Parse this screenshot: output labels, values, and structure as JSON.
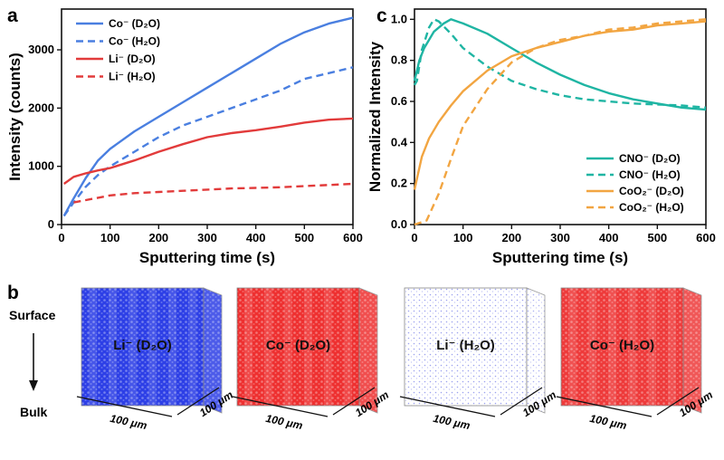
{
  "panel_letters": {
    "a": "a",
    "b": "b",
    "c": "c"
  },
  "chart_data": [
    {
      "panel": "a",
      "type": "line",
      "xlabel": "Sputtering time (s)",
      "ylabel": "Intensity (counts)",
      "xlim": [
        0,
        600
      ],
      "ylim": [
        0,
        3700
      ],
      "xticks": [
        0,
        100,
        200,
        300,
        400,
        500,
        600
      ],
      "yticks": [
        0,
        1000,
        2000,
        3000
      ],
      "legend_position": "top-left",
      "series": [
        {
          "name": "Co⁻ (D₂O)",
          "color": "#4a7fe0",
          "dash": "solid",
          "x": [
            5,
            25,
            50,
            75,
            100,
            150,
            200,
            250,
            300,
            350,
            400,
            450,
            500,
            550,
            600
          ],
          "y": [
            150,
            450,
            800,
            1100,
            1300,
            1600,
            1850,
            2100,
            2350,
            2600,
            2850,
            3100,
            3300,
            3450,
            3550
          ]
        },
        {
          "name": "Co⁻ (H₂O)",
          "color": "#4a7fe0",
          "dash": "dashed",
          "x": [
            5,
            25,
            50,
            75,
            100,
            150,
            200,
            250,
            300,
            350,
            400,
            450,
            500,
            550,
            600
          ],
          "y": [
            150,
            380,
            650,
            850,
            1000,
            1250,
            1500,
            1700,
            1850,
            2000,
            2150,
            2300,
            2500,
            2600,
            2700
          ]
        },
        {
          "name": "Li⁻ (D₂O)",
          "color": "#e23b3b",
          "dash": "solid",
          "x": [
            5,
            25,
            50,
            75,
            100,
            150,
            200,
            250,
            300,
            350,
            400,
            450,
            500,
            550,
            600
          ],
          "y": [
            700,
            820,
            880,
            930,
            970,
            1100,
            1250,
            1380,
            1500,
            1570,
            1620,
            1680,
            1750,
            1800,
            1820
          ]
        },
        {
          "name": "Li⁻ (H₂O)",
          "color": "#e23b3b",
          "dash": "dashed",
          "x": [
            25,
            50,
            75,
            100,
            150,
            200,
            250,
            300,
            350,
            400,
            450,
            500,
            550,
            600
          ],
          "y": [
            380,
            420,
            460,
            500,
            540,
            560,
            580,
            600,
            620,
            630,
            640,
            660,
            680,
            700
          ]
        }
      ]
    },
    {
      "panel": "c",
      "type": "line",
      "xlabel": "Sputtering time (s)",
      "ylabel": "Normalized Intensity",
      "xlim": [
        0,
        600
      ],
      "ylim": [
        0,
        1.05
      ],
      "xticks": [
        0,
        100,
        200,
        300,
        400,
        500,
        600
      ],
      "yticks": [
        0.0,
        0.2,
        0.4,
        0.6,
        0.8,
        1.0
      ],
      "ytick_labels": [
        "0.0",
        "0.2",
        "0.4",
        "0.6",
        "0.8",
        "1.0"
      ],
      "legend_position": "bottom-right",
      "series": [
        {
          "name": "CNO⁻ (D₂O)",
          "color": "#1fb5a3",
          "dash": "solid",
          "x": [
            0,
            10,
            20,
            40,
            60,
            75,
            100,
            150,
            200,
            250,
            300,
            350,
            400,
            450,
            500,
            550,
            600
          ],
          "y": [
            0.7,
            0.8,
            0.86,
            0.94,
            0.98,
            1.0,
            0.98,
            0.93,
            0.86,
            0.79,
            0.73,
            0.68,
            0.64,
            0.61,
            0.59,
            0.57,
            0.56
          ]
        },
        {
          "name": "CNO⁻ (H₂O)",
          "color": "#1fb5a3",
          "dash": "dashed",
          "x": [
            0,
            5,
            15,
            30,
            40,
            50,
            75,
            100,
            150,
            200,
            250,
            300,
            350,
            400,
            450,
            500,
            550,
            600
          ],
          "y": [
            0.68,
            0.7,
            0.85,
            0.96,
            1.0,
            0.99,
            0.93,
            0.86,
            0.77,
            0.7,
            0.66,
            0.63,
            0.61,
            0.6,
            0.59,
            0.585,
            0.58,
            0.57
          ]
        },
        {
          "name": "CoO₂⁻ (D₂O)",
          "color": "#f2a541",
          "dash": "solid",
          "x": [
            0,
            15,
            30,
            50,
            75,
            100,
            150,
            200,
            250,
            300,
            350,
            400,
            450,
            500,
            550,
            600
          ],
          "y": [
            0.17,
            0.33,
            0.42,
            0.5,
            0.58,
            0.65,
            0.75,
            0.82,
            0.86,
            0.89,
            0.92,
            0.94,
            0.95,
            0.97,
            0.98,
            0.99
          ]
        },
        {
          "name": "CoO₂⁻ (H₂O)",
          "color": "#f2a541",
          "dash": "dashed",
          "x": [
            0,
            25,
            50,
            75,
            100,
            150,
            200,
            250,
            300,
            350,
            400,
            450,
            500,
            550,
            600
          ],
          "y": [
            0.0,
            0.02,
            0.15,
            0.32,
            0.48,
            0.66,
            0.79,
            0.86,
            0.9,
            0.92,
            0.95,
            0.96,
            0.98,
            0.99,
            1.0
          ]
        }
      ]
    }
  ],
  "panel_b": {
    "side_top": "Surface",
    "side_bottom": "Bulk",
    "cubes": [
      {
        "label": "Li⁻ (D₂O)",
        "color": "#2f3fe0",
        "density": "high",
        "bg": "#2d3fe6"
      },
      {
        "label": "Co⁻ (D₂O)",
        "color": "#e81e1e",
        "density": "high",
        "bg": "#ee3030"
      },
      {
        "label": "Li⁻ (H₂O)",
        "color": "#4a55e0",
        "density": "low",
        "bg": "#ffffff"
      },
      {
        "label": "Co⁻ (H₂O)",
        "color": "#e81e1e",
        "density": "high",
        "bg": "#ee3a3a"
      }
    ],
    "dim_label": "100 μm"
  }
}
